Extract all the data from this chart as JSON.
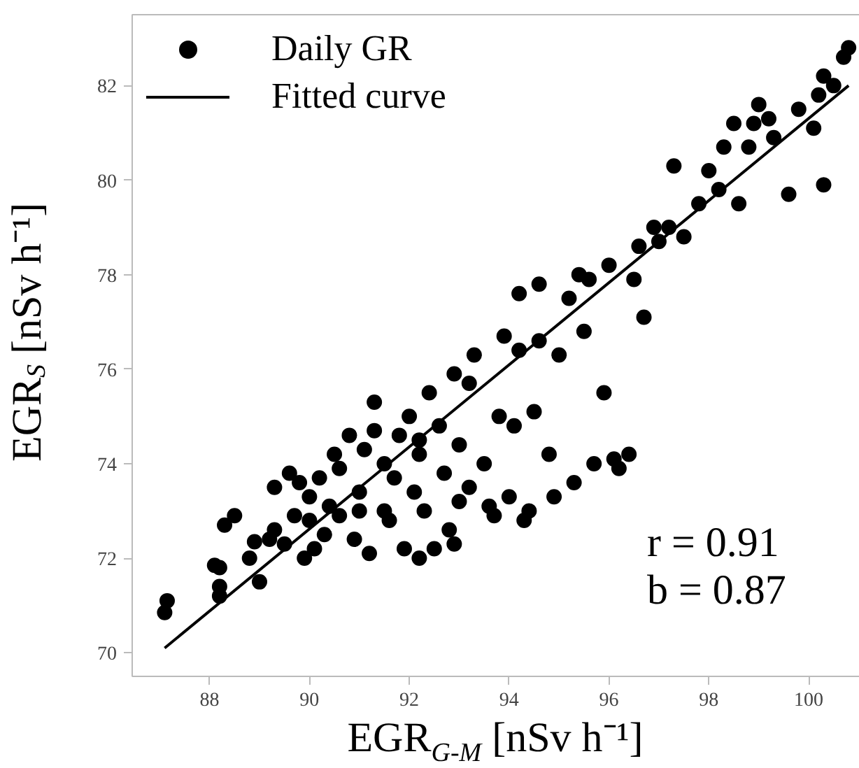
{
  "chart_data": {
    "type": "scatter",
    "xlabel": "EGR$_{G-M}$ [nSv h⁻¹]",
    "ylabel": "EGR$_{S}$ [nSv h⁻¹]",
    "xlim": [
      86.45,
      101.05
    ],
    "ylim": [
      69.5,
      83.5
    ],
    "xticks": [
      88,
      90,
      92,
      94,
      96,
      98,
      100
    ],
    "yticks": [
      70,
      72,
      74,
      76,
      78,
      80,
      82
    ],
    "grid": false,
    "legend": "top left",
    "annotations": [
      "r = 0.91",
      "b = 0.87"
    ],
    "series": [
      {
        "name": "Daily GR",
        "marker": "circle",
        "color": "#000000",
        "x": [
          87.1,
          87.15,
          88.1,
          88.2,
          88.2,
          88.2,
          88.3,
          88.5,
          88.8,
          88.9,
          89.0,
          89.2,
          89.3,
          89.3,
          89.5,
          89.6,
          89.8,
          89.9,
          90.0,
          90.0,
          90.1,
          90.2,
          90.3,
          90.4,
          90.6,
          90.6,
          90.8,
          90.9,
          91.0,
          91.1,
          91.2,
          91.3,
          91.5,
          91.5,
          91.6,
          91.7,
          91.8,
          91.9,
          92.0,
          92.1,
          92.2,
          92.2,
          92.3,
          92.4,
          92.5,
          92.6,
          92.7,
          92.8,
          92.9,
          93.0,
          93.0,
          93.2,
          93.2,
          93.3,
          93.5,
          93.6,
          93.7,
          93.8,
          94.0,
          94.1,
          94.2,
          94.2,
          94.3,
          94.4,
          94.5,
          94.6,
          94.8,
          94.9,
          95.0,
          95.2,
          95.3,
          95.4,
          95.5,
          95.7,
          95.9,
          96.0,
          96.1,
          96.2,
          96.4,
          96.5,
          96.6,
          96.7,
          96.9,
          97.2,
          97.3,
          97.5,
          97.8,
          98.0,
          98.2,
          98.3,
          98.5,
          98.6,
          98.8,
          99.0,
          99.2,
          99.3,
          99.6,
          99.8,
          100.1,
          100.2,
          100.3,
          100.3,
          100.5,
          100.7,
          100.8,
          91.3,
          92.2,
          90.5,
          89.7,
          91.0,
          92.9,
          95.6,
          97.0,
          98.9,
          94.6,
          93.9
        ],
        "values": [
          70.85,
          71.1,
          71.85,
          71.8,
          71.4,
          71.2,
          72.7,
          72.9,
          72.0,
          72.35,
          71.5,
          72.4,
          72.6,
          73.5,
          72.3,
          73.8,
          73.6,
          72.0,
          72.8,
          73.3,
          72.2,
          73.7,
          72.5,
          73.1,
          72.9,
          73.9,
          74.6,
          72.4,
          73.4,
          74.3,
          72.1,
          74.7,
          73.0,
          74.0,
          72.8,
          73.7,
          74.6,
          72.2,
          75.0,
          73.4,
          72.0,
          74.2,
          73.0,
          75.5,
          72.2,
          74.8,
          73.8,
          72.6,
          75.9,
          74.4,
          73.2,
          73.5,
          75.7,
          76.3,
          74.0,
          73.1,
          72.9,
          75.0,
          73.3,
          74.8,
          77.6,
          76.4,
          72.8,
          73.0,
          75.1,
          77.8,
          74.2,
          73.3,
          76.3,
          77.5,
          73.6,
          78.0,
          76.8,
          74.0,
          75.5,
          78.2,
          74.1,
          73.9,
          74.2,
          77.9,
          78.6,
          77.1,
          79.0,
          79.0,
          80.3,
          78.8,
          79.5,
          80.2,
          79.8,
          80.7,
          81.2,
          79.5,
          80.7,
          81.6,
          81.3,
          80.9,
          79.7,
          81.5,
          81.1,
          81.8,
          82.2,
          79.9,
          82.0,
          82.6,
          82.8,
          75.3,
          74.5,
          74.2,
          72.9,
          73.0,
          72.3,
          77.9,
          78.7,
          81.2,
          76.6,
          76.7
        ]
      },
      {
        "name": "Fitted curve",
        "type": "line",
        "color": "#000000",
        "line_style": "solid",
        "x": [
          87.1,
          100.8
        ],
        "values": [
          70.1,
          82.0
        ]
      }
    ]
  }
}
